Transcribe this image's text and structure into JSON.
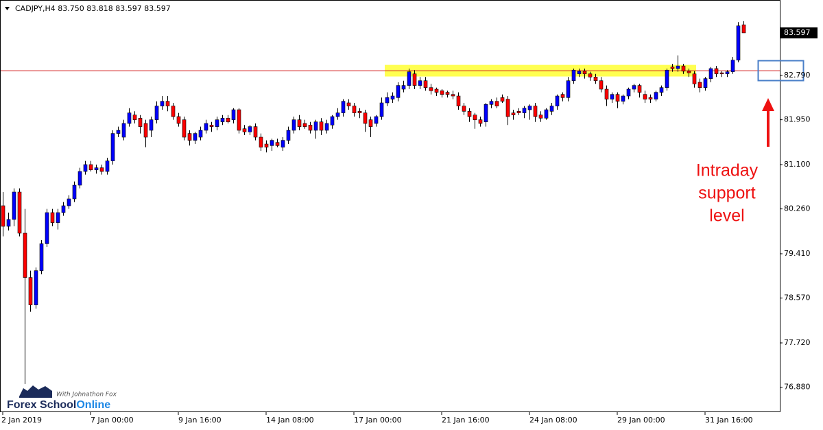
{
  "chart_data": {
    "type": "candlestick",
    "title": "CADJPY,H4  83.750 83.818 83.597 83.597",
    "categories": [
      "2 Jan 2019",
      null,
      null,
      null,
      null,
      null,
      null,
      null,
      null,
      null,
      null,
      null,
      null,
      null,
      null,
      null,
      "7 Jan 00:00",
      null,
      null,
      null,
      null,
      null,
      null,
      null,
      null,
      null,
      null,
      null,
      null,
      null,
      null,
      null,
      "9 Jan 16:00",
      null,
      null,
      null,
      null,
      null,
      null,
      null,
      null,
      null,
      null,
      null,
      null,
      null,
      null,
      null,
      "14 Jan 08:00",
      null,
      null,
      null,
      null,
      null,
      null,
      null,
      null,
      null,
      null,
      null,
      null,
      null,
      null,
      null,
      "17 Jan 00:00",
      null,
      null,
      null,
      null,
      null,
      null,
      null,
      null,
      null,
      null,
      null,
      null,
      null,
      null,
      null,
      "21 Jan 16:00",
      null,
      null,
      null,
      null,
      null,
      null,
      null,
      null,
      null,
      null,
      null,
      null,
      null,
      null,
      null,
      "24 Jan 08:00",
      null,
      null,
      null,
      null,
      null,
      null,
      null,
      null,
      null,
      null,
      null,
      null,
      null,
      null,
      null,
      "29 Jan 00:00",
      null,
      null,
      null,
      null,
      null,
      null,
      null,
      null,
      null,
      null,
      null,
      null,
      null,
      null,
      null,
      "31 Jan 16:00",
      null,
      null,
      null,
      null,
      null,
      null,
      null
    ],
    "open": [
      80.32,
      79.93,
      80.06,
      80.58,
      79.8,
      78.96,
      78.44,
      79.09,
      79.6,
      80.19,
      80.0,
      80.19,
      80.32,
      80.45,
      80.71,
      80.97,
      81.1,
      81.0,
      81.04,
      80.97,
      81.17,
      81.69,
      81.62,
      81.88,
      82.04,
      81.98,
      81.88,
      81.75,
      81.95,
      82.21,
      82.3,
      82.21,
      82.01,
      81.95,
      81.69,
      81.56,
      81.62,
      81.75,
      81.85,
      81.82,
      81.91,
      81.98,
      81.95,
      82.14,
      81.78,
      81.72,
      81.82,
      81.62,
      81.49,
      81.46,
      81.52,
      81.43,
      81.56,
      81.75,
      81.95,
      81.88,
      81.85,
      81.75,
      81.91,
      81.75,
      81.85,
      82.01,
      82.08,
      82.27,
      82.21,
      82.11,
      82.08,
      81.95,
      81.88,
      82.01,
      82.27,
      82.34,
      82.37,
      82.53,
      82.6,
      82.82,
      82.6,
      82.69,
      82.56,
      82.53,
      82.5,
      82.47,
      82.43,
      82.4,
      82.21,
      82.11,
      82.04,
      81.95,
      81.91,
      82.24,
      82.3,
      82.37,
      82.34,
      82.08,
      82.11,
      82.08,
      82.14,
      82.21,
      82.04,
      81.98,
      82.11,
      82.21,
      82.43,
      82.37,
      82.69,
      82.82,
      82.87,
      82.82,
      82.76,
      82.69,
      82.53,
      82.34,
      82.43,
      82.3,
      82.4,
      82.53,
      82.6,
      82.43,
      82.37,
      82.34,
      82.47,
      82.56,
      82.95,
      82.92,
      82.97,
      82.87,
      82.82,
      82.66,
      82.56,
      82.73,
      82.92,
      82.84,
      82.82,
      82.86,
      83.08,
      83.75
    ],
    "high": [
      80.58,
      80.19,
      80.65,
      80.65,
      80.26,
      79.09,
      79.15,
      79.67,
      80.26,
      80.26,
      80.26,
      80.39,
      80.52,
      80.78,
      81.04,
      81.17,
      81.17,
      81.1,
      81.1,
      81.23,
      81.75,
      81.82,
      81.95,
      82.17,
      82.11,
      82.04,
      81.95,
      82.01,
      82.3,
      82.4,
      82.4,
      82.27,
      82.08,
      82.01,
      81.75,
      81.72,
      81.82,
      81.95,
      81.91,
      82.01,
      82.04,
      82.04,
      82.17,
      82.17,
      81.85,
      81.85,
      81.88,
      81.69,
      81.56,
      81.59,
      81.59,
      81.62,
      81.82,
      82.01,
      82.04,
      81.95,
      81.91,
      81.95,
      81.98,
      81.95,
      82.04,
      82.17,
      82.34,
      82.34,
      82.27,
      82.17,
      82.14,
      82.01,
      82.04,
      82.37,
      82.47,
      82.47,
      82.66,
      82.69,
      82.92,
      82.89,
      82.76,
      82.76,
      82.63,
      82.56,
      82.53,
      82.5,
      82.5,
      82.47,
      82.27,
      82.17,
      82.08,
      82.01,
      82.27,
      82.34,
      82.37,
      82.43,
      82.4,
      82.14,
      82.17,
      82.21,
      82.24,
      82.27,
      82.11,
      82.17,
      82.27,
      82.43,
      82.47,
      82.76,
      82.92,
      82.92,
      82.92,
      82.86,
      82.82,
      82.76,
      82.6,
      82.47,
      82.47,
      82.43,
      82.56,
      82.63,
      82.63,
      82.5,
      82.43,
      82.5,
      82.6,
      82.92,
      83.01,
      83.17,
      83.01,
      82.92,
      82.87,
      82.73,
      82.76,
      82.95,
      82.97,
      82.87,
      82.89,
      83.14,
      83.8,
      83.818
    ],
    "low": [
      79.74,
      79.85,
      79.93,
      79.74,
      76.94,
      78.31,
      78.37,
      79.02,
      79.54,
      79.93,
      79.87,
      80.13,
      80.26,
      80.39,
      80.65,
      80.91,
      80.97,
      80.93,
      80.91,
      80.91,
      81.1,
      81.62,
      81.56,
      81.82,
      81.88,
      81.69,
      81.43,
      81.62,
      81.88,
      82.14,
      82.11,
      81.95,
      81.82,
      81.56,
      81.46,
      81.49,
      81.56,
      81.69,
      81.72,
      81.75,
      81.85,
      81.88,
      81.88,
      81.69,
      81.66,
      81.66,
      81.56,
      81.36,
      81.33,
      81.36,
      81.43,
      81.36,
      81.49,
      81.69,
      81.75,
      81.78,
      81.69,
      81.59,
      81.66,
      81.69,
      81.78,
      81.95,
      82.01,
      82.14,
      82.01,
      81.98,
      81.72,
      81.62,
      81.82,
      81.95,
      82.21,
      82.27,
      82.3,
      82.47,
      82.53,
      82.53,
      82.53,
      82.5,
      82.43,
      82.4,
      82.37,
      82.37,
      82.34,
      82.14,
      82.04,
      81.91,
      81.78,
      81.82,
      81.82,
      82.17,
      82.17,
      82.27,
      81.85,
      81.95,
      82.04,
      81.98,
      81.95,
      81.91,
      81.91,
      81.95,
      82.04,
      82.14,
      82.3,
      82.3,
      82.63,
      82.76,
      82.73,
      82.69,
      82.63,
      82.47,
      82.21,
      82.27,
      82.17,
      82.24,
      82.34,
      82.47,
      82.37,
      82.27,
      82.27,
      82.3,
      82.4,
      82.5,
      82.86,
      82.86,
      82.82,
      82.76,
      82.56,
      82.47,
      82.5,
      82.66,
      82.76,
      82.76,
      82.76,
      82.82,
      83.04,
      83.597
    ],
    "close": [
      79.93,
      80.06,
      80.58,
      79.8,
      78.96,
      78.44,
      79.09,
      79.6,
      80.19,
      80.0,
      80.19,
      80.32,
      80.45,
      80.71,
      80.97,
      81.1,
      81.0,
      81.04,
      80.97,
      81.17,
      81.69,
      81.75,
      81.88,
      82.08,
      81.95,
      81.82,
      81.62,
      81.95,
      82.21,
      82.3,
      82.21,
      82.01,
      81.88,
      81.62,
      81.56,
      81.69,
      81.75,
      81.88,
      81.82,
      81.95,
      81.98,
      81.91,
      82.14,
      81.75,
      81.72,
      81.82,
      81.62,
      81.43,
      81.43,
      81.56,
      81.46,
      81.56,
      81.75,
      81.95,
      81.82,
      81.82,
      81.75,
      81.91,
      81.75,
      81.88,
      82.01,
      82.08,
      82.3,
      82.21,
      82.08,
      82.08,
      81.88,
      81.82,
      82.01,
      82.27,
      82.37,
      82.4,
      82.6,
      82.6,
      82.86,
      82.6,
      82.69,
      82.56,
      82.5,
      82.47,
      82.43,
      82.43,
      82.4,
      82.21,
      82.11,
      82.01,
      81.95,
      81.88,
      82.24,
      82.3,
      82.21,
      82.3,
      82.01,
      82.04,
      82.08,
      82.17,
      82.21,
      82.01,
      81.98,
      82.14,
      82.21,
      82.4,
      82.37,
      82.69,
      82.89,
      82.87,
      82.82,
      82.76,
      82.69,
      82.53,
      82.34,
      82.43,
      82.3,
      82.4,
      82.53,
      82.6,
      82.47,
      82.34,
      82.34,
      82.47,
      82.56,
      82.89,
      82.92,
      82.97,
      82.87,
      82.84,
      82.63,
      82.56,
      82.73,
      82.92,
      82.82,
      82.82,
      82.86,
      83.08,
      83.73,
      83.597
    ],
    "up_color": "#0000ff",
    "down_color": "#ff0000",
    "ylim": [
      76.42,
      84.22
    ],
    "yticks": [
      {
        "value": 82.79,
        "label": "82.790"
      },
      {
        "value": 81.95,
        "label": "81.950"
      },
      {
        "value": 81.1,
        "label": "81.100"
      },
      {
        "value": 80.26,
        "label": "80.260"
      },
      {
        "value": 79.41,
        "label": "79.410"
      },
      {
        "value": 78.57,
        "label": "78.570"
      },
      {
        "value": 77.72,
        "label": "77.720"
      },
      {
        "value": 76.88,
        "label": "76.880"
      }
    ],
    "current_price": 83.597,
    "hline": {
      "value": 82.88,
      "color": "#d42020"
    },
    "zone": {
      "y": [
        82.77,
        82.99
      ],
      "x": [
        70,
        126
      ],
      "color": "#ffff33"
    },
    "annotation": [
      "Intraday",
      "support",
      "level"
    ],
    "watermark": {
      "tagline": "With Johnathon Fox",
      "brand": [
        "Forex School",
        "Online"
      ]
    }
  }
}
